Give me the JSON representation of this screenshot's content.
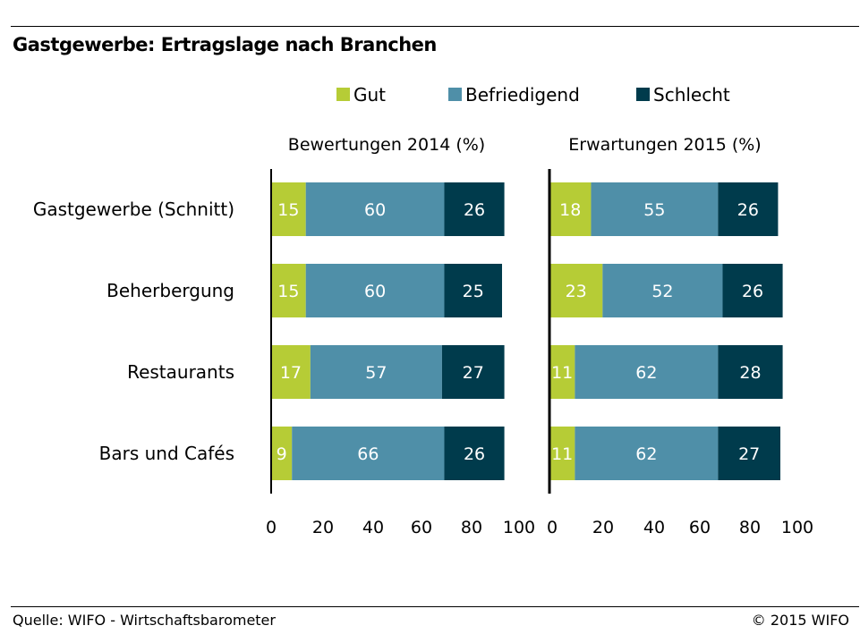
{
  "title": "Gastgewerbe: Ertragslage nach Branchen",
  "footer": {
    "source": "Quelle: WIFO - Wirtschaftsbarometer",
    "copyright": "© 2015 WIFO"
  },
  "colors": {
    "Gut": "#b6cc36",
    "Befriedigend": "#4f8fa8",
    "Schlecht": "#003b4c",
    "axis": "#000000"
  },
  "chart_data": [
    {
      "type": "bar",
      "orientation": "horizontal",
      "stacked": true,
      "title": "Bewertungen 2014 (%)",
      "categories": [
        "Gastgewerbe (Schnitt)",
        "Beherbergung",
        "Restaurants",
        "Bars und Cafés"
      ],
      "series": [
        {
          "name": "Gut",
          "values": [
            15,
            15,
            17,
            9
          ]
        },
        {
          "name": "Befriedigend",
          "values": [
            60,
            60,
            57,
            66
          ]
        },
        {
          "name": "Schlecht",
          "values": [
            26,
            25,
            27,
            26
          ]
        }
      ],
      "xlim": [
        0,
        100
      ],
      "xticks": [
        "0",
        "20",
        "40",
        "60",
        "80",
        "100"
      ],
      "legend": "top-center",
      "grid": false
    },
    {
      "type": "bar",
      "orientation": "horizontal",
      "stacked": true,
      "title": "Erwartungen 2015 (%)",
      "categories": [
        "Gastgewerbe (Schnitt)",
        "Beherbergung",
        "Restaurants",
        "Bars und Cafés"
      ],
      "series": [
        {
          "name": "Gut",
          "values": [
            18,
            23,
            11,
            11
          ]
        },
        {
          "name": "Befriedigend",
          "values": [
            55,
            52,
            62,
            62
          ]
        },
        {
          "name": "Schlecht",
          "values": [
            26,
            26,
            28,
            27
          ]
        }
      ],
      "xlim": [
        0,
        100
      ],
      "xticks": [
        "0",
        "20",
        "40",
        "60",
        "80",
        "100"
      ],
      "legend": "top-center",
      "grid": false
    }
  ]
}
